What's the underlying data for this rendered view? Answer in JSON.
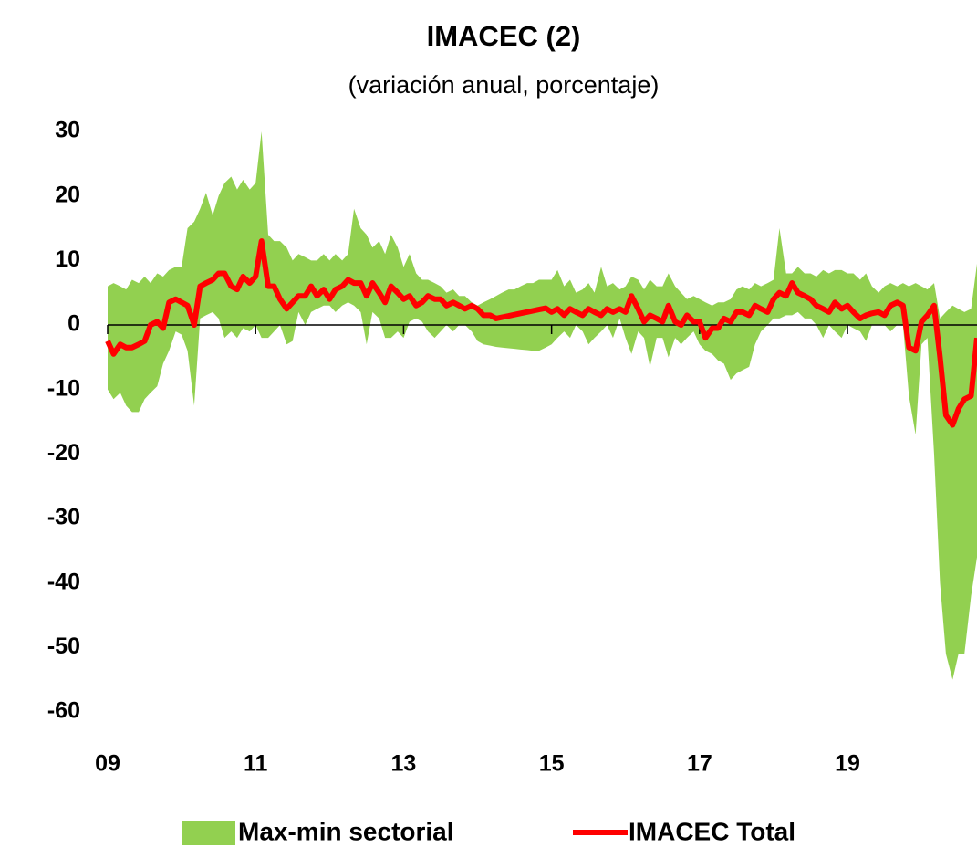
{
  "chart_data": {
    "type": "band-line",
    "title": "IMACEC (2)",
    "subtitle": "(variación anual, porcentaje)",
    "x": [
      2009.0,
      2009.08,
      2009.17,
      2009.25,
      2009.33,
      2009.42,
      2009.5,
      2009.58,
      2009.67,
      2009.75,
      2009.83,
      2009.92,
      2010.0,
      2010.08,
      2010.17,
      2010.25,
      2010.33,
      2010.42,
      2010.5,
      2010.58,
      2010.67,
      2010.75,
      2010.83,
      2010.92,
      2011.0,
      2011.08,
      2011.17,
      2011.25,
      2011.33,
      2011.42,
      2011.5,
      2011.58,
      2011.67,
      2011.75,
      2011.83,
      2011.92,
      2012.0,
      2012.08,
      2012.17,
      2012.25,
      2012.33,
      2012.42,
      2012.5,
      2012.58,
      2012.67,
      2012.75,
      2012.83,
      2012.92,
      2013.0,
      2013.08,
      2013.17,
      2013.25,
      2013.33,
      2013.42,
      2013.5,
      2013.58,
      2013.67,
      2013.75,
      2013.83,
      2013.92,
      2014.0,
      2014.08,
      2014.17,
      2014.25,
      2014.33,
      2014.42,
      2014.5,
      2014.58,
      2014.67,
      2014.75,
      2014.83,
      2014.92,
      2015.0,
      2015.08,
      2015.17,
      2015.25,
      2015.33,
      2015.42,
      2015.5,
      2015.58,
      2015.67,
      2015.75,
      2015.83,
      2015.92,
      2016.0,
      2016.08,
      2016.17,
      2016.25,
      2016.33,
      2016.42,
      2016.5,
      2016.58,
      2016.67,
      2016.75,
      2016.83,
      2016.92,
      2017.0,
      2017.08,
      2017.17,
      2017.25,
      2017.33,
      2017.42,
      2017.5,
      2017.58,
      2017.67,
      2017.75,
      2017.83,
      2017.92,
      2018.0,
      2018.08,
      2018.17,
      2018.25,
      2018.33,
      2018.42,
      2018.5,
      2018.58,
      2018.67,
      2018.75,
      2018.83,
      2018.92,
      2019.0,
      2019.08,
      2019.17,
      2019.25,
      2019.33,
      2019.42,
      2019.5,
      2019.58,
      2019.67,
      2019.75,
      2019.83,
      2019.92,
      2020.0,
      2020.08,
      2020.17,
      2020.25,
      2020.33,
      2020.42,
      2020.5,
      2020.58,
      2020.67,
      2020.75
    ],
    "series": [
      {
        "name": "Max-min sectorial",
        "color": "#92d050",
        "kind": "band",
        "upper": [
          6,
          6.5,
          6,
          5.5,
          7,
          6.5,
          7.5,
          6.5,
          8,
          7.5,
          8.5,
          9,
          9,
          15,
          16,
          18,
          20.5,
          17,
          20,
          22,
          23,
          21,
          22.5,
          21,
          22,
          30,
          14,
          13,
          13,
          12,
          10,
          11,
          10.5,
          10,
          10,
          11,
          10,
          11,
          10,
          11,
          18,
          15,
          14,
          12,
          13,
          11,
          14,
          12,
          9,
          11,
          8,
          7,
          7,
          6.5,
          6,
          5,
          5.5,
          4.5,
          4.5,
          3.5,
          3,
          3.5,
          4,
          4.5,
          5,
          5.5,
          5.5,
          6,
          6.5,
          6.5,
          7,
          7,
          7,
          8.5,
          6,
          7,
          5,
          5.5,
          6.5,
          5,
          9,
          6,
          6.5,
          5.5,
          6,
          7.5,
          7,
          5.5,
          7,
          6,
          6,
          8,
          6,
          5,
          4,
          4.5,
          4,
          3.5,
          3,
          3.5,
          3.5,
          4,
          5.5,
          6,
          5.5,
          6.5,
          6,
          6.5,
          7,
          15,
          8,
          8,
          9,
          8,
          8,
          7.5,
          8.5,
          8,
          8.5,
          8.5,
          8,
          8,
          7,
          8,
          6,
          5,
          6,
          6.5,
          6,
          6.5,
          6,
          6.5,
          6,
          5.5,
          6.5,
          1,
          2,
          3,
          2.5,
          2,
          2.5,
          9.5
        ],
        "lower": [
          -10,
          -11.5,
          -10.5,
          -12.5,
          -13.5,
          -13.5,
          -11.5,
          -10.5,
          -9.5,
          -6,
          -4,
          -1,
          -1.5,
          -4,
          -12.5,
          1,
          1.5,
          2,
          1,
          -2,
          -1,
          -2,
          -0.5,
          -1,
          0,
          -2,
          -2,
          -1,
          0,
          -3,
          -2.5,
          2,
          0,
          2,
          2.5,
          3,
          3,
          2,
          3,
          3.5,
          3,
          2,
          -3,
          2,
          1,
          -2,
          -2,
          -1,
          -2,
          0.5,
          1,
          0.5,
          -1,
          -2,
          -1,
          0,
          -1,
          0,
          0,
          -1,
          -2.5,
          -3,
          -3.2,
          -3.4,
          -3.5,
          -3.6,
          -3.7,
          -3.8,
          -3.9,
          -4,
          -4,
          -3.5,
          -3,
          -2,
          -1,
          -2,
          0,
          -1,
          -3,
          -2,
          -1,
          0,
          -2,
          1,
          -2,
          -4.5,
          -1,
          -2,
          -6.5,
          -2,
          -2,
          -5,
          -2,
          -3,
          -2,
          -1,
          -3,
          -4,
          -4.5,
          -5.5,
          -6,
          -8.5,
          -7.5,
          -7,
          -6.5,
          -3,
          -1,
          0,
          1,
          1,
          1.5,
          1.5,
          2,
          1,
          1,
          0,
          -2,
          0,
          -1,
          -2,
          0,
          -0.5,
          -1,
          -2.5,
          0,
          0,
          0,
          -1,
          0,
          0,
          -11,
          -17,
          -3,
          -2,
          -20,
          -40,
          -51,
          -55,
          -51,
          -51,
          -42,
          -36
        ]
      },
      {
        "name": "IMACEC Total",
        "color": "#ff0000",
        "kind": "line",
        "values": [
          -2.5,
          -4.5,
          -3,
          -3.5,
          -3.5,
          -3,
          -2.5,
          0,
          0.5,
          -0.5,
          3.5,
          4,
          3.5,
          3,
          0,
          6,
          6.5,
          7,
          8,
          8,
          6,
          5.5,
          7.5,
          6.5,
          7.5,
          13,
          6,
          6,
          4,
          2.5,
          3.5,
          4.5,
          4.5,
          6,
          4.5,
          5.5,
          4,
          5.5,
          6,
          7,
          6.5,
          6.5,
          4.5,
          6.5,
          5,
          3.5,
          6,
          5,
          4,
          4.5,
          3,
          3.5,
          4.5,
          4,
          4,
          3,
          3.5,
          3,
          2.5,
          3,
          2.5,
          1.5,
          1.5,
          1,
          1.2,
          1.4,
          1.6,
          1.8,
          2,
          2.2,
          2.4,
          2.6,
          2,
          2.5,
          1.5,
          2.5,
          2,
          1.5,
          2.5,
          2,
          1.5,
          2.5,
          2,
          2.5,
          2,
          4.5,
          2.5,
          0.5,
          1.5,
          1,
          0.5,
          3,
          0.5,
          0,
          1.5,
          0.5,
          0.5,
          -2,
          -0.5,
          -0.5,
          1,
          0.5,
          2,
          2,
          1.5,
          3,
          2.5,
          2,
          4,
          5,
          4.5,
          6.5,
          5,
          4.5,
          4,
          3,
          2.5,
          2,
          3.5,
          2.5,
          3,
          2,
          1,
          1.5,
          1.8,
          2,
          1.5,
          3,
          3.5,
          3,
          -3.5,
          -4,
          0.5,
          1.5,
          3,
          -5,
          -14,
          -15.5,
          -13,
          -11.5,
          -11,
          -2
        ]
      }
    ],
    "xlim": [
      2009,
      2020.75
    ],
    "xticks": [
      {
        "value": 2009,
        "label": "09"
      },
      {
        "value": 2011,
        "label": "11"
      },
      {
        "value": 2013,
        "label": "13"
      },
      {
        "value": 2015,
        "label": "15"
      },
      {
        "value": 2017,
        "label": "17"
      },
      {
        "value": 2019,
        "label": "19"
      }
    ],
    "ylim": [
      -60,
      30
    ],
    "yticks": [
      -60,
      -50,
      -40,
      -30,
      -20,
      -10,
      0,
      10,
      20,
      30
    ]
  }
}
